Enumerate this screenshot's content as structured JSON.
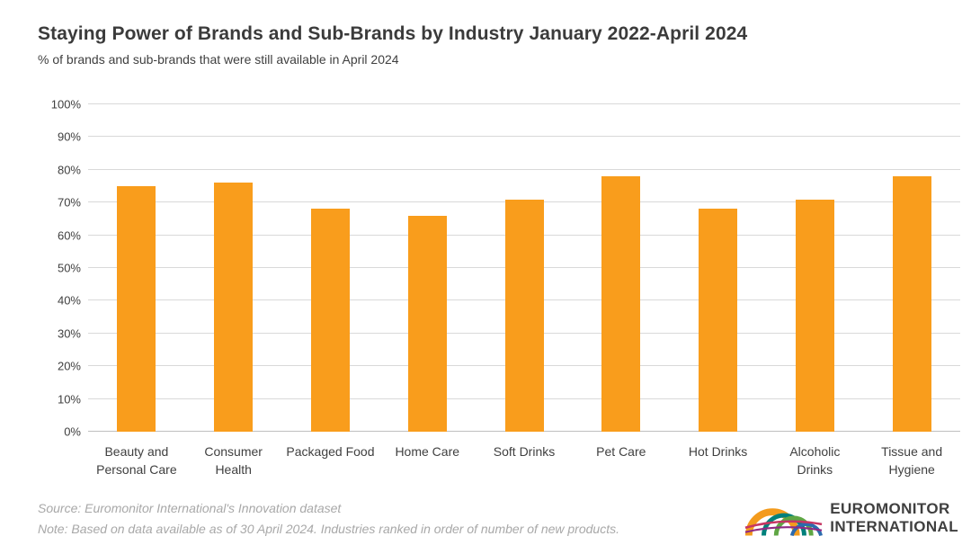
{
  "page": {
    "title": "Staying Power of Brands and Sub-Brands by Industry January 2022-April 2024",
    "subtitle": "% of brands and sub-brands that were still available in April 2024"
  },
  "chart_data": {
    "type": "bar",
    "title": "Staying Power of Brands and Sub-Brands by Industry January 2022-April 2024",
    "subtitle": "% of brands and sub-brands that were still available in April 2024",
    "categories": [
      "Beauty and Personal Care",
      "Consumer Health",
      "Packaged Food",
      "Home Care",
      "Soft Drinks",
      "Pet Care",
      "Hot Drinks",
      "Alcoholic Drinks",
      "Tissue and Hygiene"
    ],
    "values": [
      75,
      76,
      68,
      66,
      71,
      78,
      68,
      71,
      78
    ],
    "unit": "%",
    "xlabel": "",
    "ylabel": "",
    "ylim": [
      0,
      100
    ],
    "ytick_step": 10,
    "ytick_labels": [
      "0%",
      "10%",
      "20%",
      "30%",
      "40%",
      "50%",
      "60%",
      "70%",
      "80%",
      "90%",
      "100%"
    ],
    "x_labels_wrapped": [
      [
        "Beauty and",
        "Personal Care"
      ],
      [
        "Consumer",
        "Health"
      ],
      [
        "Packaged Food"
      ],
      [
        "Home Care"
      ],
      [
        "Soft Drinks"
      ],
      [
        "Pet Care"
      ],
      [
        "Hot Drinks"
      ],
      [
        "Alcoholic",
        "Drinks"
      ],
      [
        "Tissue and",
        "Hygiene"
      ]
    ],
    "grid": true,
    "legend": false,
    "bar_color": "#F99D1C"
  },
  "footer": {
    "source": "Source: Euromonitor International's Innovation dataset",
    "note": "Note: Based on data available as of 30 April 2024. Industries ranked in order of number of new products."
  },
  "logo": {
    "line1": "EUROMONITOR",
    "line2": "INTERNATIONAL",
    "arc_colors": [
      "#F39B1D",
      "#00807B",
      "#5FA644",
      "#2C6BAE",
      "#C63663",
      "#8F2A84"
    ]
  },
  "colors": {
    "bar": "#F99D1C",
    "gridline": "#D9D9D9",
    "axis_line": "#BFBFBF",
    "title_text": "#3B3B3B",
    "axis_text": "#404040",
    "footer_text": "#A8A8A8",
    "logo_text": "#3F3F3F",
    "background": "#FFFFFF"
  }
}
